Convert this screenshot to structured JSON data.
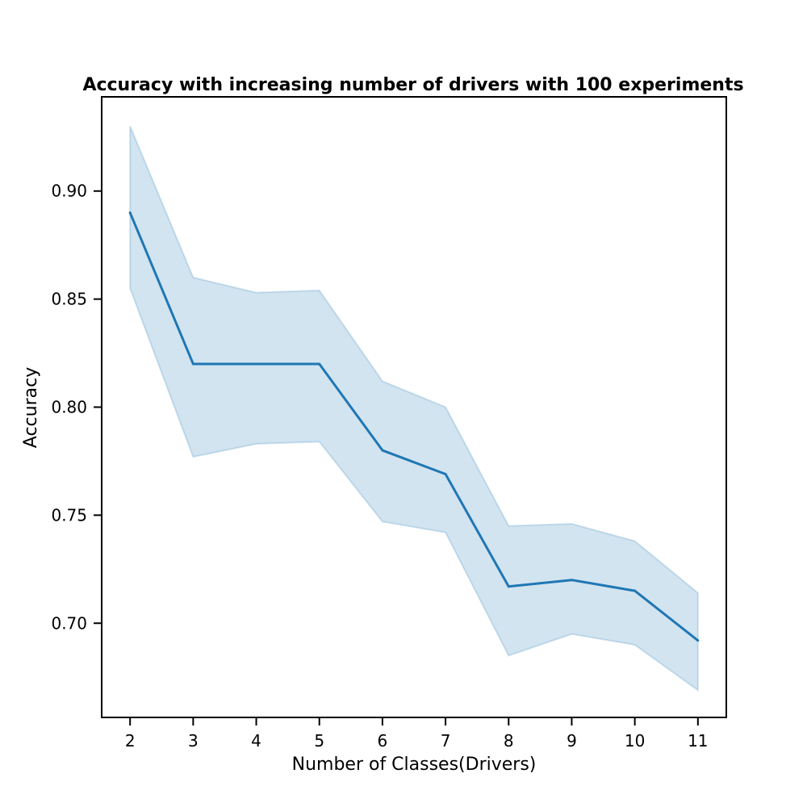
{
  "chart_data": {
    "type": "line",
    "title": "Accuracy with increasing number of drivers with 100 experiments",
    "xlabel": "Number of Classes(Drivers)",
    "ylabel": "Accuracy",
    "x": [
      2,
      3,
      4,
      5,
      6,
      7,
      8,
      9,
      10,
      11
    ],
    "series": [
      {
        "values": [
          0.89,
          0.82,
          0.82,
          0.82,
          0.78,
          0.769,
          0.717,
          0.72,
          0.715,
          0.692
        ],
        "upper": [
          0.93,
          0.86,
          0.853,
          0.854,
          0.812,
          0.8,
          0.745,
          0.746,
          0.738,
          0.714
        ],
        "lower": [
          0.855,
          0.777,
          0.783,
          0.784,
          0.747,
          0.742,
          0.685,
          0.695,
          0.69,
          0.669
        ],
        "color": "#1f77b4",
        "band_color": "#1f77b4"
      }
    ],
    "xticks": [
      "2",
      "3",
      "4",
      "5",
      "6",
      "7",
      "8",
      "9",
      "10",
      "11"
    ],
    "yticks": [
      "0.70",
      "0.75",
      "0.80",
      "0.85",
      "0.90"
    ],
    "ytick_values": [
      0.7,
      0.75,
      0.8,
      0.85,
      0.9
    ],
    "xlim": [
      1.55,
      11.45
    ],
    "ylim": [
      0.6564,
      0.9436
    ],
    "grid": false,
    "legend": "none"
  }
}
